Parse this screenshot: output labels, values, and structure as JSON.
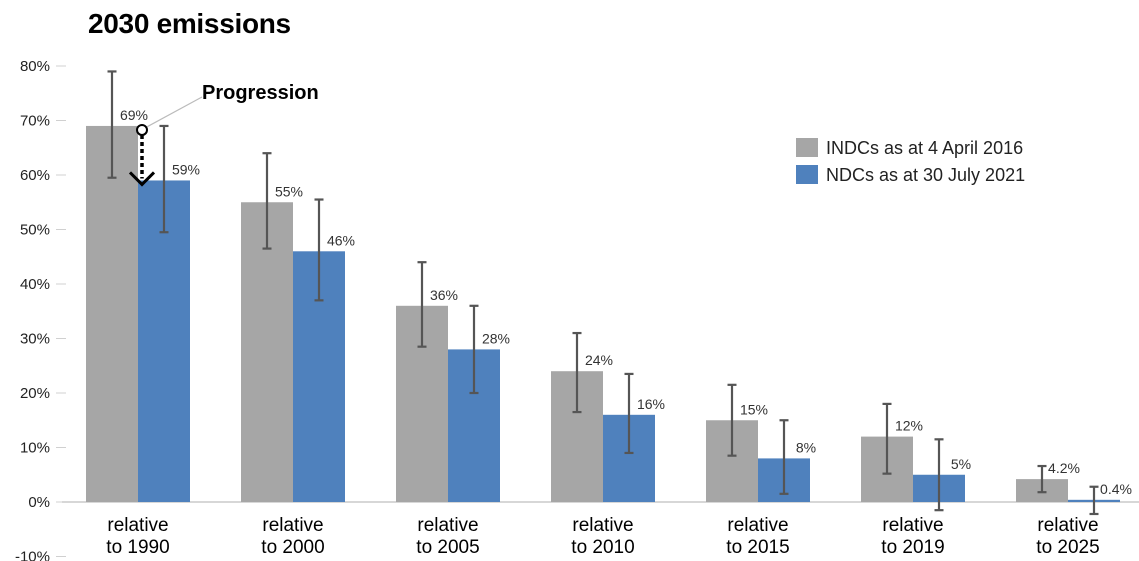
{
  "chart_data": {
    "type": "bar",
    "title": "2030 emissions",
    "categories": [
      [
        "relative",
        "to 1990"
      ],
      [
        "relative",
        "to 2000"
      ],
      [
        "relative",
        "to 2005"
      ],
      [
        "relative",
        "to 2010"
      ],
      [
        "relative",
        "to 2015"
      ],
      [
        "relative",
        "to 2019"
      ],
      [
        "relative",
        "to 2025"
      ]
    ],
    "ylim": [
      -10,
      80
    ],
    "yticks": [
      "-10%",
      "0%",
      "10%",
      "20%",
      "30%",
      "40%",
      "50%",
      "60%",
      "70%",
      "80%"
    ],
    "series": [
      {
        "name": "INDCs as at 4 April 2016",
        "color": "#a6a6a6",
        "values": [
          69,
          55,
          36,
          24,
          15,
          12,
          4.2
        ],
        "labels": [
          "69%",
          "55%",
          "36%",
          "24%",
          "15%",
          "12%",
          "4.2%"
        ],
        "err_low": [
          59.5,
          46.5,
          28.5,
          16.5,
          8.5,
          5.2,
          1.8
        ],
        "err_high": [
          79,
          64,
          44,
          31,
          21.5,
          18,
          6.6
        ]
      },
      {
        "name": "NDCs as at 30 July 2021",
        "color": "#4f81bd",
        "values": [
          59,
          46,
          28,
          16,
          8,
          5,
          0.4
        ],
        "labels": [
          "59%",
          "46%",
          "28%",
          "16%",
          "8%",
          "5%",
          "0.4%"
        ],
        "err_low": [
          49.5,
          37,
          20,
          9,
          1.5,
          -1.5,
          -2.2
        ],
        "err_high": [
          69,
          55.5,
          36,
          23.5,
          15,
          11.5,
          2.8
        ]
      }
    ],
    "annotation": "Progression",
    "legend_position": "top-right",
    "grid": false
  }
}
